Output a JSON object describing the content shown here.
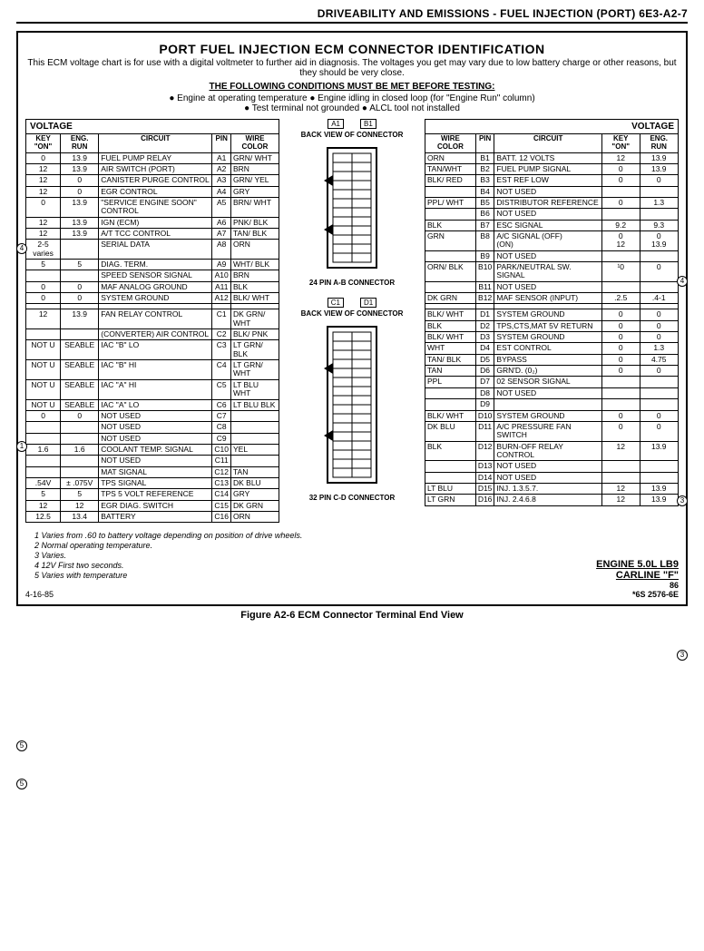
{
  "header": "DRIVEABILITY AND EMISSIONS - FUEL INJECTION (PORT)  6E3-A2-7",
  "title": "PORT FUEL INJECTION ECM CONNECTOR IDENTIFICATION",
  "sub": "This ECM voltage chart is for use with a digital voltmeter to further aid in diagnosis. The voltages you get may vary due to low battery charge or other reasons, but they should be very close.",
  "cond_title": "THE FOLLOWING CONDITIONS MUST BE MET BEFORE TESTING:",
  "cond": "● Engine at operating temperature  ● Engine idling in closed loop (for \"Engine Run\" column)\n● Test terminal not grounded  ● ALCL tool not installed",
  "voltage_label": "VOLTAGE",
  "left_headers": [
    "KEY \"ON\"",
    "ENG. RUN",
    "CIRCUIT",
    "PIN",
    "WIRE COLOR"
  ],
  "right_headers": [
    "WIRE COLOR",
    "PIN",
    "CIRCUIT",
    "KEY \"ON\"",
    "ENG. RUN"
  ],
  "left_A": [
    [
      "0",
      "13.9",
      "FUEL PUMP RELAY",
      "A1",
      "GRN/ WHT"
    ],
    [
      "12",
      "13.9",
      "AIR SWITCH (PORT)",
      "A2",
      "BRN"
    ],
    [
      "12",
      "0",
      "CANISTER PURGE CONTROL",
      "A3",
      "GRN/ YEL"
    ],
    [
      "12",
      "0",
      "EGR CONTROL",
      "A4",
      "GRY"
    ],
    [
      "0",
      "13.9",
      "\"SERVICE ENGINE SOON\" CONTROL",
      "A5",
      "BRN/ WHT"
    ],
    [
      "12",
      "13.9",
      "IGN (ECM)",
      "A6",
      "PNK/ BLK"
    ],
    [
      "12",
      "13.9",
      "A/T TCC CONTROL",
      "A7",
      "TAN/ BLK"
    ],
    [
      "2-5 varies",
      "",
      "SERIAL DATA",
      "A8",
      "ORN"
    ],
    [
      "5",
      "5",
      "DIAG. TERM.",
      "A9",
      "WHT/ BLK"
    ],
    [
      "",
      "",
      "SPEED SENSOR SIGNAL",
      "A10",
      "BRN"
    ],
    [
      "0",
      "0",
      "MAF ANALOG GROUND",
      "A11",
      "BLK"
    ],
    [
      "0",
      "0",
      "SYSTEM GROUND",
      "A12",
      "BLK/ WHT"
    ]
  ],
  "left_C": [
    [
      "12",
      "13.9",
      "FAN RELAY CONTROL",
      "C1",
      "DK GRN/ WHT"
    ],
    [
      "",
      "",
      "(CONVERTER) AIR CONTROL",
      "C2",
      "BLK/ PNK"
    ],
    [
      "NOT U",
      "SEABLE",
      "IAC \"B\" LO",
      "C3",
      "LT GRN/ BLK"
    ],
    [
      "NOT U",
      "SEABLE",
      "IAC \"B\" HI",
      "C4",
      "LT GRN/ WHT"
    ],
    [
      "NOT U",
      "SEABLE",
      "IAC \"A\" HI",
      "C5",
      "LT BLU WHT"
    ],
    [
      "NOT U",
      "SEABLE",
      "IAC \"A\" LO",
      "C6",
      "LT BLU BLK"
    ],
    [
      "0",
      "0",
      "NOT USED",
      "C7",
      ""
    ],
    [
      "",
      "",
      "NOT USED",
      "C8",
      ""
    ],
    [
      "",
      "",
      "NOT USED",
      "C9",
      ""
    ],
    [
      "1.6",
      "1.6",
      "COOLANT TEMP. SIGNAL",
      "C10",
      "YEL"
    ],
    [
      "",
      "",
      "NOT USED",
      "C11",
      ""
    ],
    [
      "",
      "",
      "MAT SIGNAL",
      "C12",
      "TAN"
    ],
    [
      ".54V",
      "± .075V",
      "TPS SIGNAL",
      "C13",
      "DK BLU"
    ],
    [
      "5",
      "5",
      "TPS 5 VOLT REFERENCE",
      "C14",
      "GRY"
    ],
    [
      "12",
      "12",
      "EGR DIAG. SWITCH",
      "C15",
      "DK GRN"
    ],
    [
      "12.5",
      "13.4",
      "BATTERY",
      "C16",
      "ORN"
    ]
  ],
  "right_B": [
    [
      "ORN",
      "B1",
      "BATT. 12 VOLTS",
      "12",
      "13.9"
    ],
    [
      "TAN/WHT",
      "B2",
      "FUEL PUMP SIGNAL",
      "0",
      "13.9"
    ],
    [
      "BLK/ RED",
      "B3",
      "EST REF LOW",
      "0",
      "0"
    ],
    [
      "",
      "B4",
      "NOT USED",
      "",
      ""
    ],
    [
      "PPL/ WHT",
      "B5",
      "DISTRIBUTOR REFERENCE",
      "0",
      "1.3"
    ],
    [
      "",
      "B6",
      "NOT USED",
      "",
      ""
    ],
    [
      "BLK",
      "B7",
      "ESC SIGNAL",
      "9.2",
      "9.3"
    ],
    [
      "GRN",
      "B8",
      "A/C SIGNAL (OFF)\n(ON)",
      "0\n12",
      "0\n13.9"
    ],
    [
      "",
      "B9",
      "NOT USED",
      "",
      ""
    ],
    [
      "ORN/ BLK",
      "B10",
      "PARK/NEUTRAL SW. SIGNAL",
      "¹0",
      "0"
    ],
    [
      "",
      "B11",
      "NOT USED",
      "",
      ""
    ],
    [
      "DK GRN",
      "B12",
      "MAF SENSOR (INPUT)",
      ".2.5",
      ".4-1"
    ]
  ],
  "right_D": [
    [
      "BLK/ WHT",
      "D1",
      "SYSTEM GROUND",
      "0",
      "0"
    ],
    [
      "BLK",
      "D2",
      "TPS,CTS,MAT 5V RETURN",
      "0",
      "0"
    ],
    [
      "BLK/ WHT",
      "D3",
      "SYSTEM GROUND",
      "0",
      "0"
    ],
    [
      "WHT",
      "D4",
      "EST CONTROL",
      "0",
      "1.3"
    ],
    [
      "TAN/ BLK",
      "D5",
      "BYPASS",
      "0",
      "4.75"
    ],
    [
      "TAN",
      "D6",
      "GRN'D. (0₂)",
      "0",
      "0"
    ],
    [
      "PPL",
      "D7",
      "02 SENSOR SIGNAL",
      "",
      ""
    ],
    [
      "",
      "D8",
      "NOT USED",
      "",
      ""
    ],
    [
      "",
      "D9",
      "",
      "",
      ""
    ],
    [
      "BLK/ WHT",
      "D10",
      "SYSTEM GROUND",
      "0",
      "0"
    ],
    [
      "DK BLU",
      "D11",
      "A/C PRESSURE FAN SWITCH",
      "0",
      "0"
    ],
    [
      "BLK",
      "D12",
      "BURN-OFF RELAY CONTROL",
      "12",
      "13.9"
    ],
    [
      "",
      "D13",
      "NOT USED",
      "",
      ""
    ],
    [
      "",
      "D14",
      "NOT USED",
      "",
      ""
    ],
    [
      "LT BLU",
      "D15",
      "INJ. 1.3.5.7.",
      "12",
      "13.9"
    ],
    [
      "LT GRN",
      "D16",
      "INJ. 2.4.6.8",
      "12",
      "13.9"
    ]
  ],
  "conn1": {
    "a": "A1",
    "b": "B1",
    "label": "BACK VIEW OF CONNECTOR",
    "name": "24 PIN A-B CONNECTOR"
  },
  "conn2": {
    "a": "C1",
    "b": "D1",
    "label": "BACK VIEW OF CONNECTOR",
    "name": "32 PIN C-D CONNECTOR"
  },
  "notes": [
    "1   Varies from .60 to battery voltage depending on position of drive wheels.",
    "2   Normal operating temperature.",
    "3   Varies.",
    "4   12V First two seconds.",
    "5   Varies with temperature"
  ],
  "engine": "ENGINE 5.0L  LB9",
  "carline": "CARLINE \"F\"",
  "date": "4-16-85",
  "code1": "86",
  "code2": "*6S 2576-6E",
  "figure": "Figure A2-6 ECM Connector Terminal End View"
}
